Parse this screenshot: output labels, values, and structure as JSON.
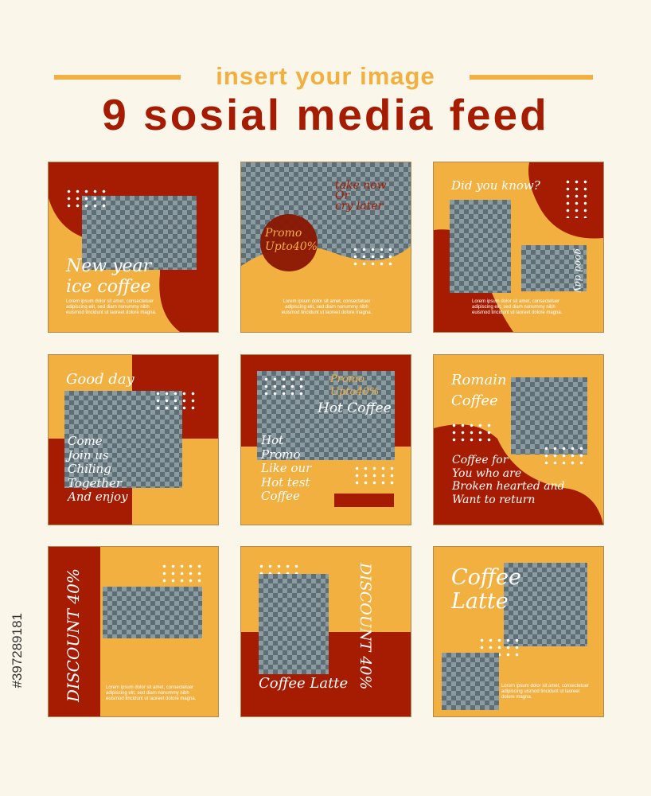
{
  "header": {
    "subtitle": "insert your image",
    "title": "9 sosial media feed"
  },
  "colors": {
    "background": "#faf6e9",
    "red": "#a51c02",
    "orange": "#f2b040",
    "checker_dark": "#5f6e75",
    "checker_light": "#8a9ba1"
  },
  "lorem3": "Lorem ipsum dolor sit amet, consectetuer adipiscing elit, sed diam nonummy nibh euismod tincidunt ut laoreet dolore magna.",
  "lorem_short": "Lorem ipsum dolor sit amet, consectetuer adipiscing uismod tincidunt ut laoreet dolore magna.",
  "cards": [
    {
      "line1": "New year",
      "line2": "ice coffee"
    },
    {
      "tag1": "take now",
      "tag2": "Or",
      "tag3": "cry later",
      "promo": "Promo",
      "upto": "Upto40%"
    },
    {
      "heading": "Did you know?",
      "vertical": "good day"
    },
    {
      "heading": "Good day",
      "lines": [
        "Come",
        "Join us",
        "Chiling",
        "Together",
        "And enjoy"
      ]
    },
    {
      "promo": "Promo",
      "upto": "Upto40%",
      "headline": "Hot Coffee",
      "lines": [
        "Hot",
        "Promo",
        "Like our",
        "Hot test",
        "Coffee"
      ]
    },
    {
      "heading1": "Romain",
      "heading2": "Coffee",
      "lines": [
        "Coffee for",
        "You who are",
        "Broken hearted and",
        "Want to return"
      ]
    },
    {
      "vertical": "DISCOUNT 40%"
    },
    {
      "vertical": "DISCOUNT 40%",
      "caption": "Coffee Latte"
    },
    {
      "heading1": "Coffee",
      "heading2": "Latte"
    }
  ],
  "stock_id": "#397289181"
}
